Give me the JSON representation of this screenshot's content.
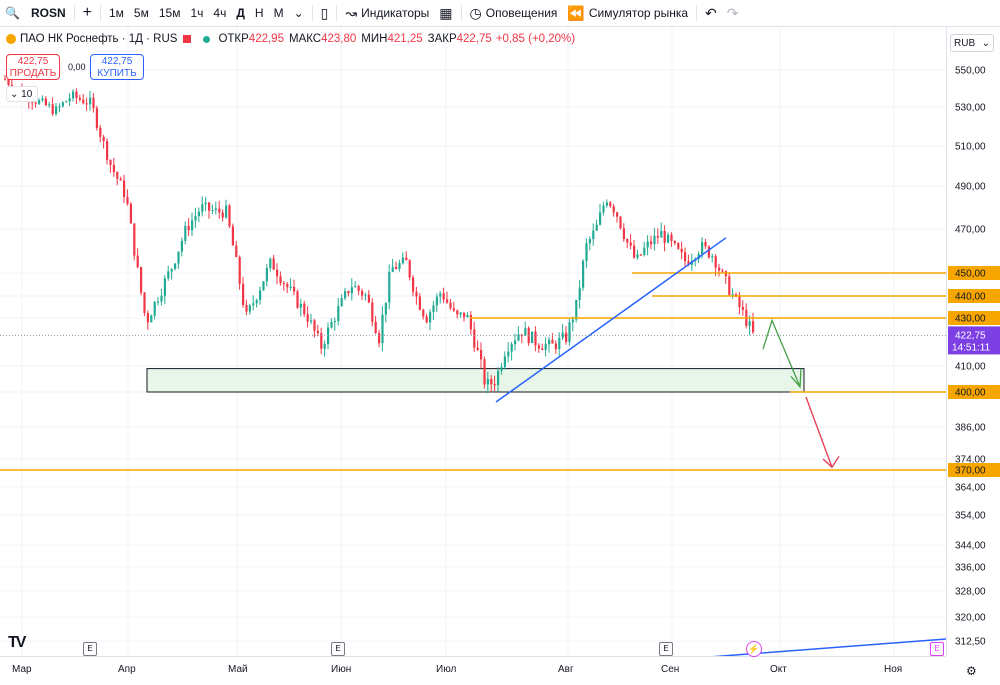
{
  "toolbar": {
    "symbol": "ROSN",
    "add": "+",
    "intervals": [
      "1м",
      "5м",
      "15м",
      "1ч",
      "4ч",
      "Д",
      "Н",
      "М"
    ],
    "active_interval": "Д",
    "indicators": "Индикаторы",
    "alerts": "Оповещения",
    "replay": "Симулятор рынка",
    "undo": "↶",
    "redo": "↷"
  },
  "legend": {
    "title": "ПАО НК Роснефть · 1Д · RUS",
    "open_label": "ОТКР",
    "open": "422,95",
    "high_label": "МАКС",
    "high": "423,80",
    "low_label": "МИН",
    "low": "421,25",
    "close_label": "ЗАКР",
    "close": "422,75",
    "change": "+0,85 (+0,20%)"
  },
  "trade": {
    "sell_price": "422,75",
    "sell_label": "ПРОДАТЬ",
    "buy_price": "422,75",
    "buy_label": "КУПИТЬ",
    "spread": "0,00",
    "qty": "10"
  },
  "currency": "RUB",
  "chart_data": {
    "type": "candlestick",
    "symbol": "ROSN",
    "interval": "1D",
    "y_ticks": [
      "550,00",
      "530,00",
      "510,00",
      "490,00",
      "470,00",
      "450,00",
      "440,00",
      "430,00",
      "410,00",
      "400,00",
      "386,00",
      "374,00",
      "370,00",
      "364,00",
      "354,00",
      "344,00",
      "336,00",
      "328,00",
      "320,00",
      "312,50"
    ],
    "x_labels": [
      "Мар",
      "Апр",
      "Май",
      "Июн",
      "Июл",
      "Авг",
      "Сен",
      "Окт",
      "Ноя"
    ],
    "last_price": "422,75",
    "countdown": "14:51:11",
    "levels": [
      {
        "price": "450,00",
        "color": "#f7a600"
      },
      {
        "price": "440,00",
        "color": "#f7a600"
      },
      {
        "price": "430,00",
        "color": "#f7a600"
      },
      {
        "price": "400,00",
        "color": "#f7a600"
      },
      {
        "price": "370,00",
        "color": "#f7a600"
      }
    ],
    "colors": {
      "up": "#22ab94",
      "down": "#f23645",
      "trend": "#2962ff",
      "level": "#f7a600",
      "zone": "#e8f5e9"
    }
  },
  "axis_events": [
    "E",
    "E",
    "E",
    "E"
  ]
}
